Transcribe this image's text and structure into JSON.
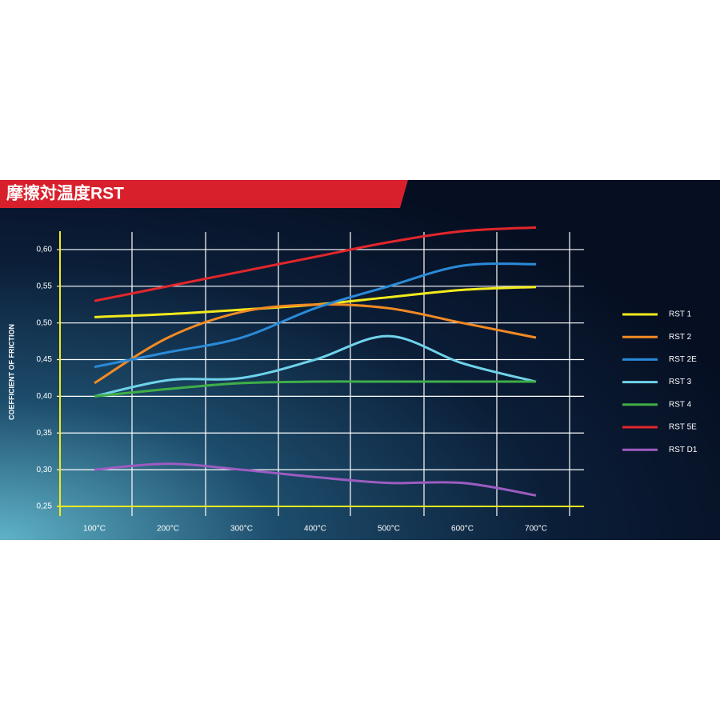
{
  "chart_data": {
    "type": "line",
    "title": "摩擦対温度RST",
    "y_label": "COEFFICIENT OF FRICTION",
    "categories": [
      "100°C",
      "200°C",
      "300°C",
      "400°C",
      "500°C",
      "600°C",
      "700°C"
    ],
    "series": [
      {
        "name": "RST 1",
        "color": "#f2ea1c",
        "values": [
          0.508,
          0.512,
          0.518,
          0.525,
          0.535,
          0.545,
          0.549
        ]
      },
      {
        "name": "RST 2",
        "color": "#f28a24",
        "values": [
          0.418,
          0.48,
          0.515,
          0.525,
          0.52,
          0.5,
          0.48
        ]
      },
      {
        "name": "RST 2E",
        "color": "#2a8ad8",
        "values": [
          0.44,
          0.46,
          0.48,
          0.52,
          0.55,
          0.578,
          0.58
        ]
      },
      {
        "name": "RST 3",
        "color": "#6fd3ea",
        "values": [
          0.4,
          0.422,
          0.425,
          0.45,
          0.482,
          0.445,
          0.42
        ]
      },
      {
        "name": "RST 4",
        "color": "#3fae48",
        "values": [
          0.4,
          0.41,
          0.418,
          0.42,
          0.42,
          0.42,
          0.42
        ]
      },
      {
        "name": "RST 5E",
        "color": "#e3262b",
        "values": [
          0.53,
          0.55,
          0.57,
          0.59,
          0.61,
          0.625,
          0.63
        ]
      },
      {
        "name": "RST D1",
        "color": "#9c5cc0",
        "values": [
          0.3,
          0.308,
          0.3,
          0.29,
          0.282,
          0.282,
          0.265
        ]
      }
    ],
    "ylim": [
      0.25,
      0.625
    ],
    "yticks": [
      {
        "value": 0.25,
        "label": "0,25"
      },
      {
        "value": 0.3,
        "label": "0,30"
      },
      {
        "value": 0.35,
        "label": "0,35"
      },
      {
        "value": 0.4,
        "label": "0,40"
      },
      {
        "value": 0.45,
        "label": "0,45"
      },
      {
        "value": 0.5,
        "label": "0,50"
      },
      {
        "value": 0.55,
        "label": "0,55"
      },
      {
        "value": 0.6,
        "label": "0,60"
      }
    ],
    "grid": true,
    "legend": "right"
  }
}
